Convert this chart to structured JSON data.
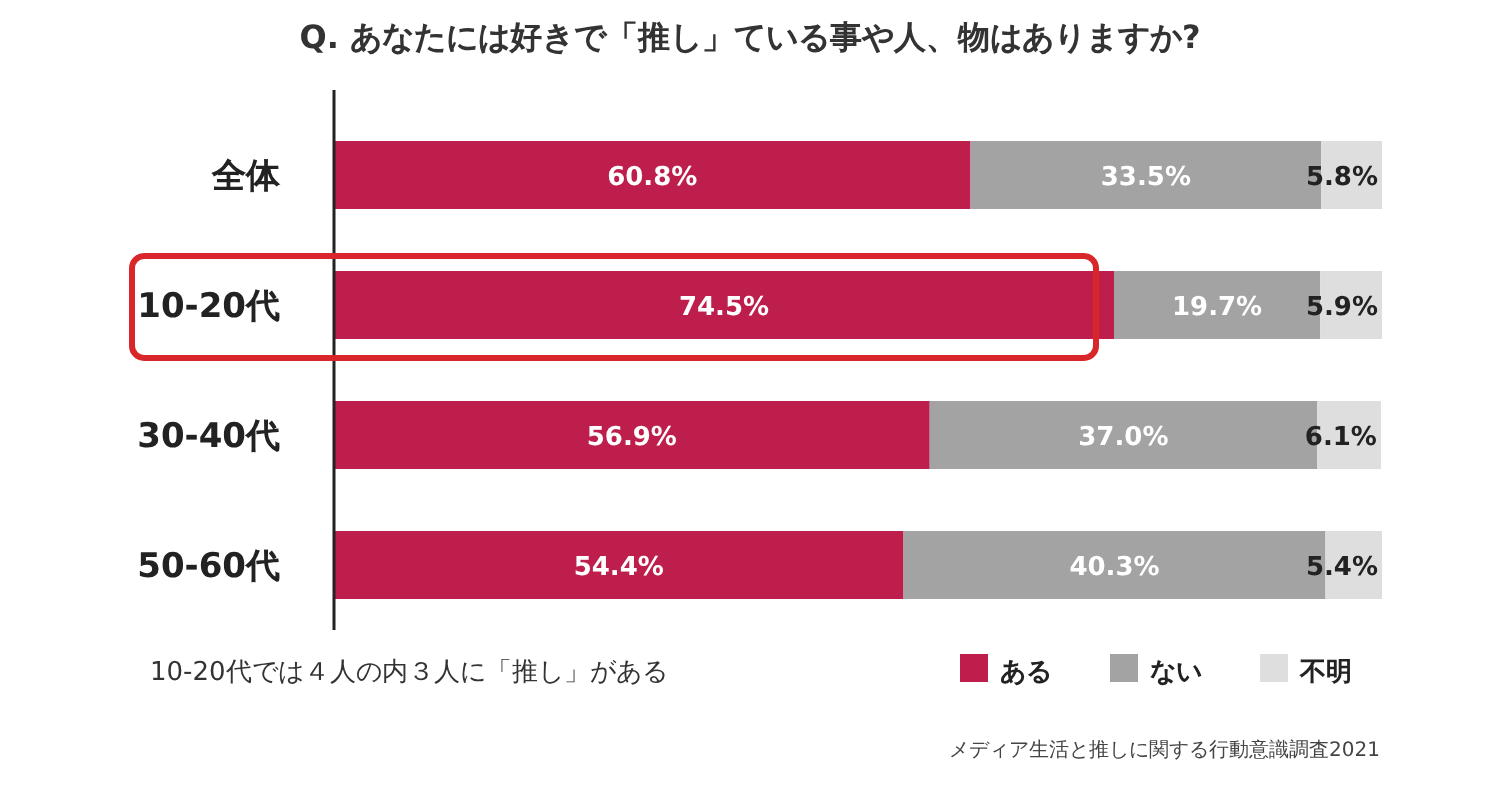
{
  "chart_data": {
    "type": "bar",
    "orientation": "horizontal",
    "stacked": true,
    "title": "Q. あなたには好きで「推し」ている事や人、物はありますか?",
    "categories": [
      "全体",
      "10-20代",
      "30-40代",
      "50-60代"
    ],
    "series": [
      {
        "name": "ある",
        "color": "#be1e4b",
        "values": [
          60.8,
          74.5,
          56.9,
          54.4
        ],
        "value_labels": [
          "60.8%",
          "74.5%",
          "56.9%",
          "54.4%"
        ]
      },
      {
        "name": "ない",
        "color": "#a3a3a3",
        "values": [
          33.5,
          19.7,
          37.0,
          40.3
        ],
        "value_labels": [
          "33.5%",
          "19.7%",
          "37.0%",
          "40.3%"
        ]
      },
      {
        "name": "不明",
        "color": "#dedede",
        "values": [
          5.8,
          5.9,
          6.1,
          5.4
        ],
        "value_labels": [
          "5.8%",
          "5.9%",
          "6.1%",
          "5.4%"
        ]
      }
    ],
    "legend": "bottom right",
    "annotations": [
      "10-20代では４人の内３人に「推し」がある",
      "メディア生活と推しに関する行動意識調査2021"
    ]
  }
}
